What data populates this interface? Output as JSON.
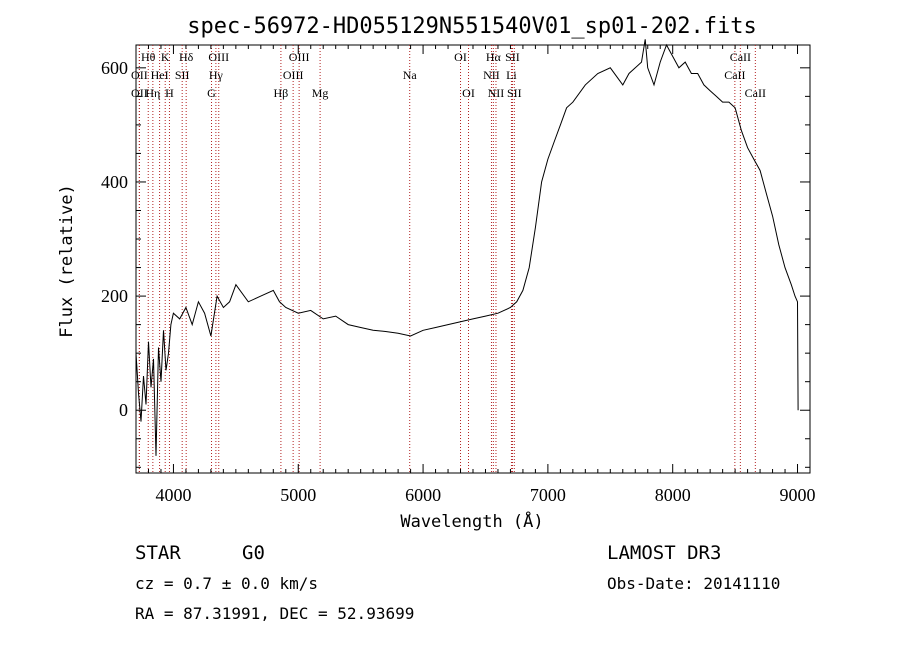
{
  "chart_data": {
    "type": "line",
    "title": "spec-56972-HD055129N551540V01_sp01-202.fits",
    "xlabel": "Wavelength (Å)",
    "ylabel": "Flux (relative)",
    "xlim": [
      3700,
      9100
    ],
    "ylim": [
      -110,
      640
    ],
    "xticks": [
      4000,
      5000,
      6000,
      7000,
      8000,
      9000
    ],
    "yticks": [
      0,
      200,
      400,
      600
    ],
    "grid": false,
    "series": [
      {
        "color": "#000000",
        "x": [
          3700,
          3720,
          3740,
          3760,
          3780,
          3800,
          3820,
          3840,
          3860,
          3880,
          3900,
          3920,
          3940,
          3960,
          3980,
          4000,
          4050,
          4100,
          4150,
          4200,
          4250,
          4300,
          4350,
          4400,
          4450,
          4500,
          4600,
          4700,
          4800,
          4850,
          4900,
          5000,
          5100,
          5200,
          5300,
          5400,
          5500,
          5600,
          5700,
          5800,
          5900,
          6000,
          6100,
          6200,
          6300,
          6400,
          6500,
          6600,
          6700,
          6750,
          6800,
          6850,
          6900,
          6950,
          7000,
          7050,
          7100,
          7150,
          7200,
          7300,
          7400,
          7500,
          7600,
          7650,
          7700,
          7750,
          7780,
          7800,
          7850,
          7900,
          7950,
          8000,
          8050,
          8100,
          8150,
          8200,
          8250,
          8300,
          8350,
          8400,
          8450,
          8500,
          8550,
          8600,
          8650,
          8700,
          8750,
          8800,
          8850,
          8900,
          8950,
          8980,
          9000,
          9005
        ],
        "y": [
          100,
          30,
          -20,
          60,
          10,
          120,
          40,
          90,
          -80,
          110,
          50,
          140,
          70,
          100,
          150,
          170,
          160,
          180,
          150,
          190,
          170,
          130,
          200,
          180,
          190,
          220,
          190,
          200,
          210,
          190,
          180,
          170,
          175,
          160,
          165,
          150,
          145,
          140,
          138,
          135,
          130,
          140,
          145,
          150,
          155,
          160,
          165,
          170,
          180,
          190,
          210,
          250,
          320,
          400,
          440,
          470,
          500,
          530,
          540,
          570,
          590,
          600,
          570,
          590,
          600,
          610,
          650,
          600,
          570,
          610,
          640,
          620,
          600,
          610,
          590,
          590,
          570,
          560,
          550,
          540,
          540,
          530,
          490,
          460,
          440,
          420,
          380,
          340,
          290,
          250,
          220,
          200,
          190,
          0
        ]
      }
    ],
    "spectral_lines": [
      {
        "label": "Hθ",
        "wavelength": 3798,
        "row": 0
      },
      {
        "label": "OII",
        "wavelength": 3727,
        "row": 1
      },
      {
        "label": "OII",
        "wavelength": 3727,
        "row": 2
      },
      {
        "label": "Hη",
        "wavelength": 3835,
        "row": 2
      },
      {
        "label": "HeI",
        "wavelength": 3889,
        "row": 1
      },
      {
        "label": "K",
        "wavelength": 3934,
        "row": 0
      },
      {
        "label": "SII",
        "wavelength": 4070,
        "row": 1
      },
      {
        "label": "H",
        "wavelength": 3968,
        "row": 2
      },
      {
        "label": "Hδ",
        "wavelength": 4102,
        "row": 0
      },
      {
        "label": "OIII",
        "wavelength": 4363,
        "row": 0
      },
      {
        "label": "Hγ",
        "wavelength": 4340,
        "row": 1
      },
      {
        "label": "G",
        "wavelength": 4305,
        "row": 2
      },
      {
        "label": "Hβ",
        "wavelength": 4861,
        "row": 2
      },
      {
        "label": "OIII",
        "wavelength": 5007,
        "row": 0
      },
      {
        "label": "OIII",
        "wavelength": 4959,
        "row": 1
      },
      {
        "label": "Mg",
        "wavelength": 5175,
        "row": 2
      },
      {
        "label": "Na",
        "wavelength": 5893,
        "row": 1
      },
      {
        "label": "OI",
        "wavelength": 6300,
        "row": 0
      },
      {
        "label": "OI",
        "wavelength": 6364,
        "row": 2
      },
      {
        "label": "Hα",
        "wavelength": 6563,
        "row": 0
      },
      {
        "label": "SII",
        "wavelength": 6716,
        "row": 0
      },
      {
        "label": "NII",
        "wavelength": 6548,
        "row": 1
      },
      {
        "label": "Li",
        "wavelength": 6708,
        "row": 1
      },
      {
        "label": "NII",
        "wavelength": 6584,
        "row": 2
      },
      {
        "label": "SII",
        "wavelength": 6731,
        "row": 2
      },
      {
        "label": "CaII",
        "wavelength": 8542,
        "row": 0
      },
      {
        "label": "CaII",
        "wavelength": 8498,
        "row": 1
      },
      {
        "label": "CaII",
        "wavelength": 8662,
        "row": 2
      }
    ]
  },
  "info": {
    "object_class": "STAR",
    "subclass": "G0",
    "survey": "LAMOST DR3",
    "redshift": "cz = 0.7 ± 0.0 km/s",
    "obs_date": "Obs-Date: 20141110",
    "coords": "RA =  87.31991, DEC =  52.93699"
  },
  "colors": {
    "line_marker": "#b22222",
    "spectrum": "#000000"
  }
}
